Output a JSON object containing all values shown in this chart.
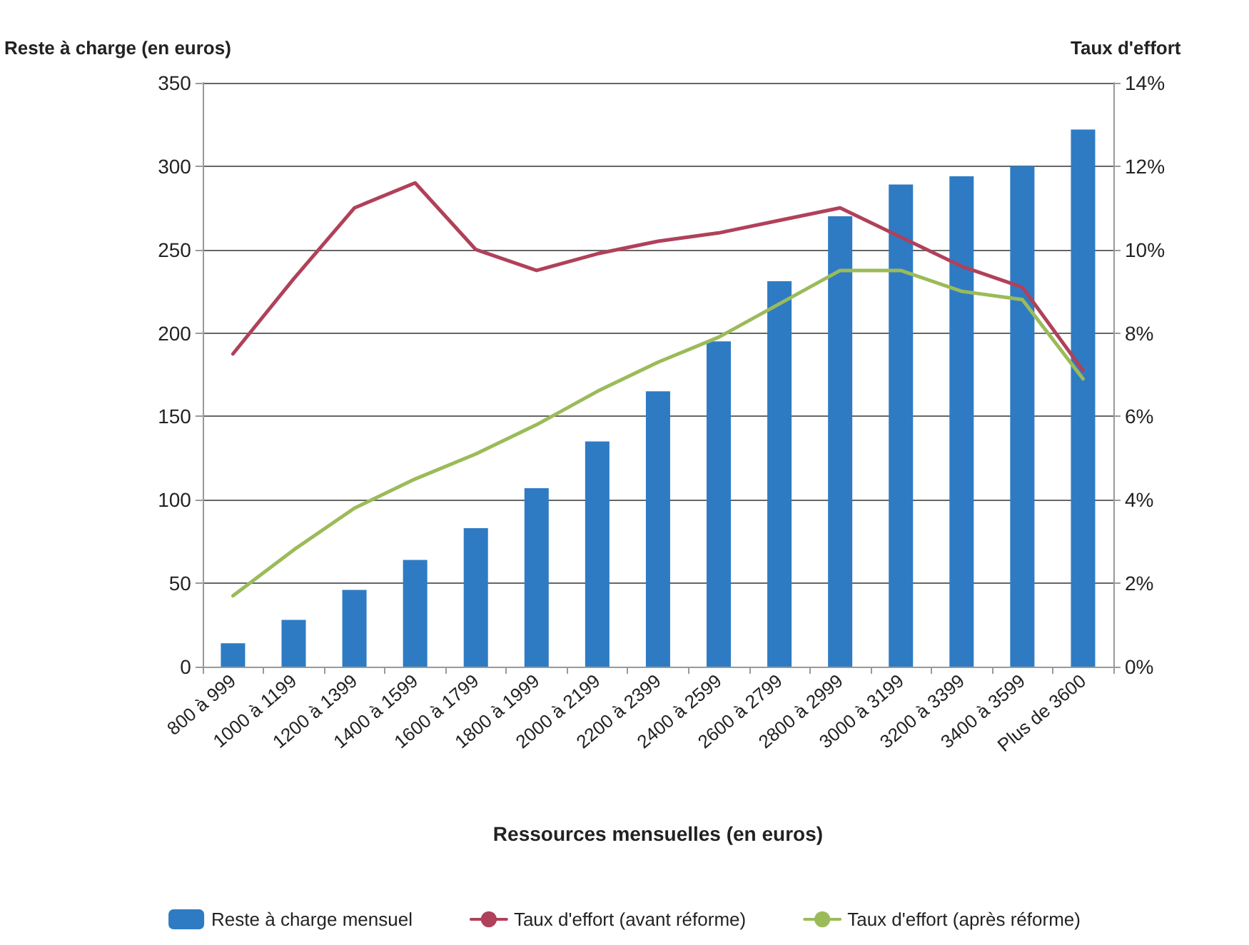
{
  "chart_data": {
    "type": "bar",
    "xlabel": "Ressources mensuelles (en euros)",
    "ylabel": "Reste à charge (en euros)",
    "y2label": "Taux d'effort",
    "categories": [
      "800 à 999",
      "1000 à 1199",
      "1200 à 1399",
      "1400 à 1599",
      "1600 à 1799",
      "1800 à 1999",
      "2000 à 2199",
      "2200 à 2399",
      "2400 à 2599",
      "2600 à 2799",
      "2800 à 2999",
      "3000 à 3199",
      "3200 à 3399",
      "3400 à 3599",
      "Plus de 3600"
    ],
    "series": [
      {
        "name": "Reste à charge mensuel",
        "color": "#2e7bc4",
        "values": [
          14,
          28,
          46,
          64,
          83,
          107,
          135,
          165,
          195,
          231,
          270,
          289,
          294,
          300,
          322
        ]
      },
      {
        "name": "Taux d'effort (avant réforme)",
        "type": "line",
        "axis": "y2",
        "color": "#b0415a",
        "values": [
          7.5,
          9.3,
          11.0,
          11.6,
          10.0,
          9.5,
          9.9,
          10.2,
          10.4,
          10.7,
          11.0,
          10.3,
          9.6,
          9.1,
          7.1
        ]
      },
      {
        "name": "Taux d'effort (après réforme)",
        "type": "line",
        "axis": "y2",
        "color": "#9bbb59",
        "values": [
          1.7,
          2.8,
          3.8,
          4.5,
          5.1,
          5.8,
          6.6,
          7.3,
          7.9,
          8.7,
          9.5,
          9.5,
          9.0,
          8.8,
          6.9
        ]
      }
    ],
    "ylim": [
      0,
      350
    ],
    "yticks": [
      0,
      50,
      100,
      150,
      200,
      250,
      300,
      350
    ],
    "y2lim": [
      0,
      14
    ],
    "y2ticks": [
      {
        "value": 0,
        "label": "0%"
      },
      {
        "value": 2,
        "label": "2%"
      },
      {
        "value": 4,
        "label": "4%"
      },
      {
        "value": 6,
        "label": "6%"
      },
      {
        "value": 8,
        "label": "8%"
      },
      {
        "value": 10,
        "label": "10%"
      },
      {
        "value": 12,
        "label": "12%"
      },
      {
        "value": 14,
        "label": "14%"
      }
    ],
    "grid": "y",
    "legend": "bottom",
    "marker": "none",
    "line_style": "solid"
  }
}
